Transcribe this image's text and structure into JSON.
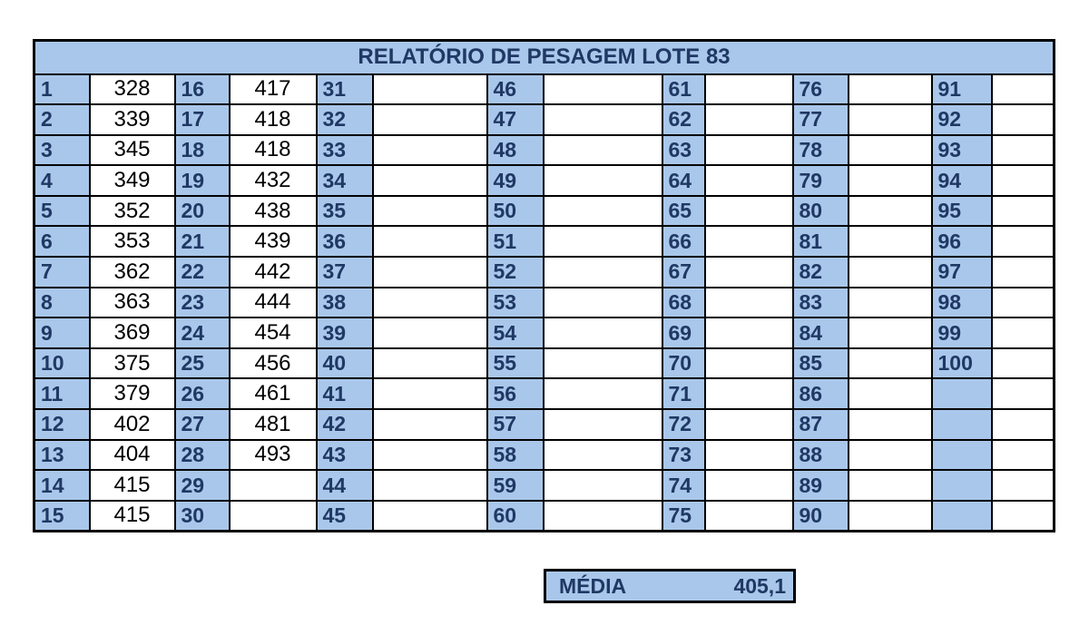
{
  "title": "RELATÓRIO DE PESAGEM LOTE 83",
  "weights": [
    "328",
    "339",
    "345",
    "349",
    "352",
    "353",
    "362",
    "363",
    "369",
    "375",
    "379",
    "402",
    "404",
    "415",
    "415",
    "417",
    "418",
    "418",
    "432",
    "438",
    "439",
    "442",
    "444",
    "454",
    "456",
    "461",
    "481",
    "493"
  ],
  "media": {
    "label": "MÉDIA",
    "value": "405,1"
  }
}
